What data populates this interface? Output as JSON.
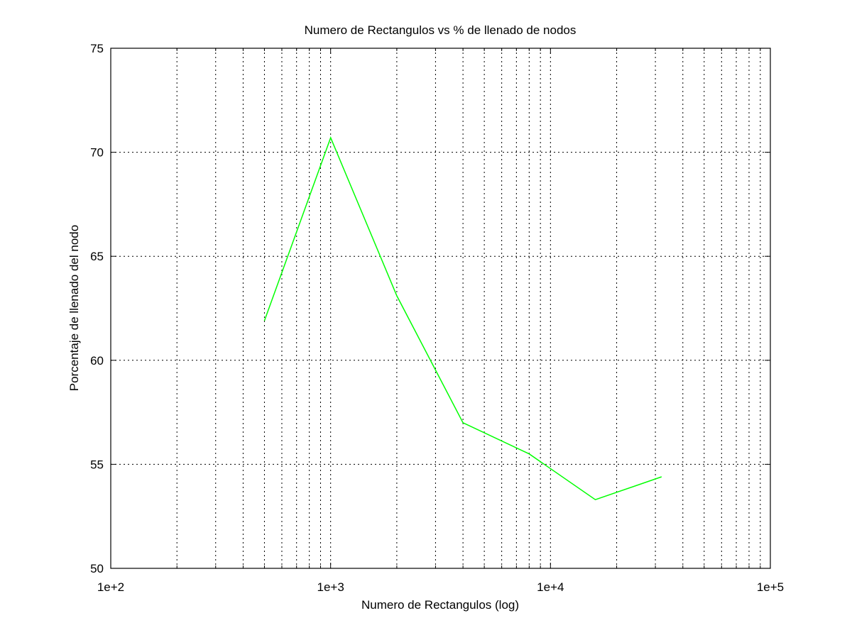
{
  "chart_data": {
    "type": "line",
    "title": "Numero de Rectangulos vs % de llenado de nodos",
    "xlabel": "Numero de Rectangulos (log)",
    "ylabel": "Porcentaje de llenado del nodo",
    "x_scale": "log",
    "xlim": [
      100,
      100000
    ],
    "ylim": [
      50,
      75
    ],
    "x_ticks": [
      100,
      1000,
      10000,
      100000
    ],
    "x_tick_labels": [
      "1e+2",
      "1e+3",
      "1e+4",
      "1e+5"
    ],
    "y_ticks": [
      50,
      55,
      60,
      65,
      70,
      75
    ],
    "y_tick_labels": [
      "50",
      "55",
      "60",
      "65",
      "70",
      "75"
    ],
    "grid": true,
    "series": [
      {
        "color": "#00ff00",
        "x": [
          500,
          1000,
          2000,
          4000,
          8000,
          16000,
          32000
        ],
        "y": [
          61.9,
          70.7,
          63.1,
          57.0,
          55.5,
          53.3,
          54.4
        ]
      }
    ]
  }
}
